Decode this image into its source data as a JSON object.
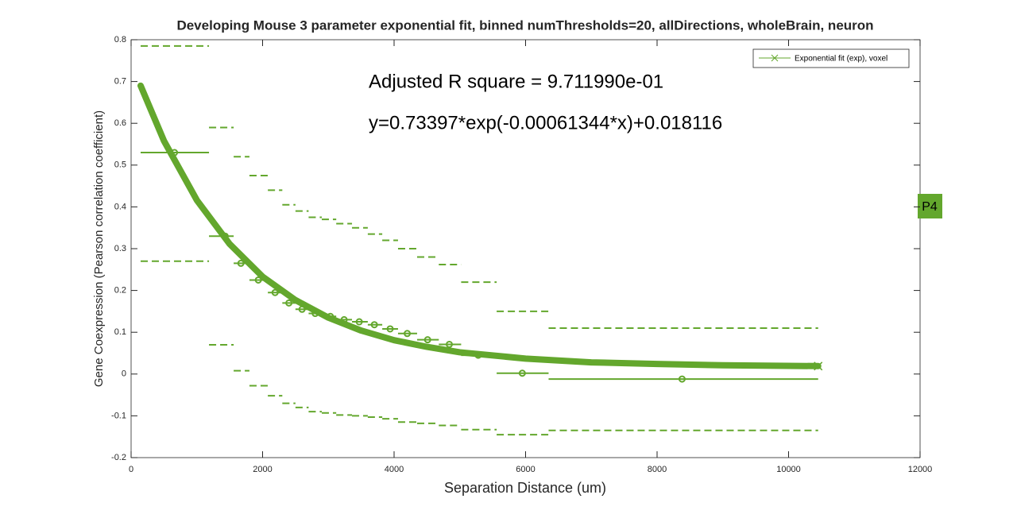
{
  "chart_data": {
    "type": "binned-fit",
    "title": "Developing Mouse 3 parameter exponential fit, binned numThresholds=20, allDirections, wholeBrain, neuron",
    "x_label": "Separation Distance (um)",
    "y_label": "Gene Coexpression (Pearson correlation coefficient)",
    "annotations": [
      "Adjusted R square = 9.711990e-01",
      "y=0.73397*exp(-0.00061344*x)+0.018116"
    ],
    "panel_label": "P4",
    "color": "#63a72d",
    "legend": "upper right",
    "xlim": [
      0,
      12000
    ],
    "ylim": [
      -0.2,
      0.8
    ],
    "xticks": [
      0,
      2000,
      4000,
      6000,
      8000,
      10000,
      12000
    ],
    "yticks": [
      -0.2,
      -0.1,
      0,
      0.1,
      0.2,
      0.3,
      0.4,
      0.5,
      0.6,
      0.7,
      0.8
    ],
    "bins": {
      "edges": [
        145,
        1185,
        1560,
        1800,
        2080,
        2300,
        2500,
        2700,
        2900,
        3120,
        3360,
        3600,
        3820,
        4060,
        4350,
        4680,
        5020,
        5560,
        6350,
        10450
      ],
      "x": [
        660,
        1430,
        1670,
        1935,
        2190,
        2400,
        2600,
        2800,
        3030,
        3240,
        3470,
        3700,
        3940,
        4200,
        4510,
        4840,
        5280,
        5950,
        8380
      ],
      "means": [
        0.53,
        0.33,
        0.265,
        0.225,
        0.195,
        0.17,
        0.155,
        0.145,
        0.138,
        0.13,
        0.125,
        0.118,
        0.108,
        0.097,
        0.082,
        0.071,
        0.045,
        0.002,
        -0.012
      ],
      "upper": [
        0.785,
        0.59,
        0.52,
        0.475,
        0.44,
        0.405,
        0.39,
        0.375,
        0.37,
        0.36,
        0.35,
        0.335,
        0.32,
        0.3,
        0.28,
        0.262,
        0.22,
        0.15,
        0.11
      ],
      "lower": [
        0.27,
        0.07,
        0.008,
        -0.028,
        -0.052,
        -0.07,
        -0.08,
        -0.09,
        -0.093,
        -0.098,
        -0.1,
        -0.103,
        -0.107,
        -0.115,
        -0.118,
        -0.123,
        -0.133,
        -0.145,
        -0.135
      ]
    },
    "series": [
      {
        "name": "Exponential fit (exp), voxel",
        "color": "#63a72d",
        "x": [
          145,
          500,
          1000,
          1500,
          2000,
          2500,
          3000,
          3500,
          4000,
          4500,
          5000,
          6000,
          7000,
          8000,
          9000,
          10450
        ],
        "values": [
          0.69,
          0.558,
          0.416,
          0.311,
          0.233,
          0.177,
          0.135,
          0.104,
          0.081,
          0.065,
          0.052,
          0.037,
          0.028,
          0.024,
          0.021,
          0.019
        ]
      }
    ]
  }
}
